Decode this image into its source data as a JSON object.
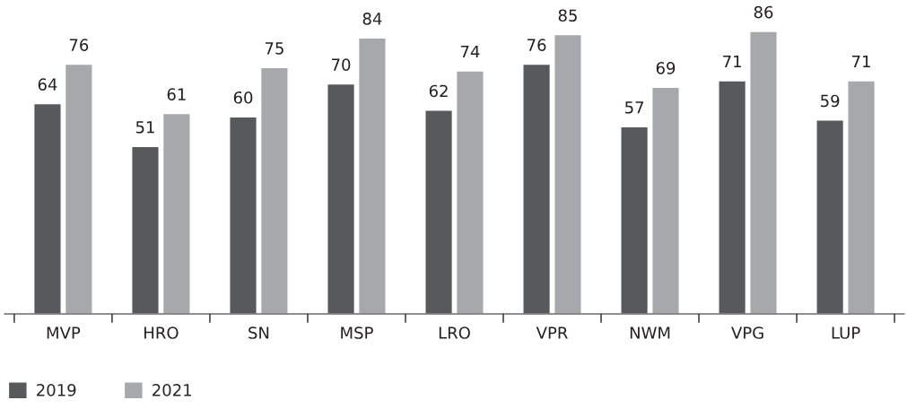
{
  "chart_data": {
    "type": "bar",
    "categories": [
      "MVP",
      "HRO",
      "SN",
      "MSP",
      "LRO",
      "VPR",
      "NWM",
      "VPG",
      "LUP"
    ],
    "series": [
      {
        "name": "2019",
        "color": "#58595b",
        "values": [
          64,
          51,
          60,
          70,
          62,
          76,
          57,
          71,
          59
        ]
      },
      {
        "name": "2021",
        "color": "#a7a8ab",
        "values": [
          76,
          61,
          75,
          84,
          74,
          85,
          69,
          86,
          71
        ]
      }
    ],
    "data_labels": true,
    "grid": false,
    "legend": "bottom left"
  }
}
